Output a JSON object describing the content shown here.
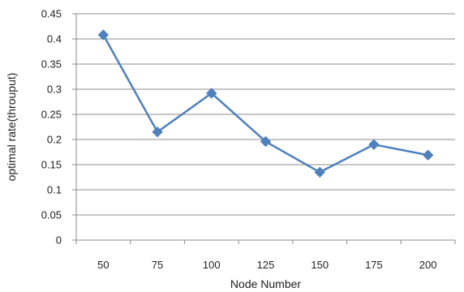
{
  "chart_data": {
    "type": "line",
    "title": "",
    "xlabel": "Node Number",
    "ylabel": "optimal rate(throuput)",
    "categories": [
      "50",
      "75",
      "100",
      "125",
      "150",
      "175",
      "200"
    ],
    "series": [
      {
        "values": [
          0.408,
          0.215,
          0.292,
          0.196,
          0.135,
          0.19,
          0.169
        ]
      }
    ],
    "ylim": [
      0,
      0.45
    ],
    "yticks": [
      "0",
      "0.05",
      "0.1",
      "0.15",
      "0.2",
      "0.25",
      "0.3",
      "0.35",
      "0.4",
      "0.45"
    ],
    "grid": "horizontal",
    "marker": "diamond",
    "colors": {
      "line": "#4f81bd",
      "grid": "#8c8c8c",
      "axis": "#8c8c8c"
    }
  }
}
